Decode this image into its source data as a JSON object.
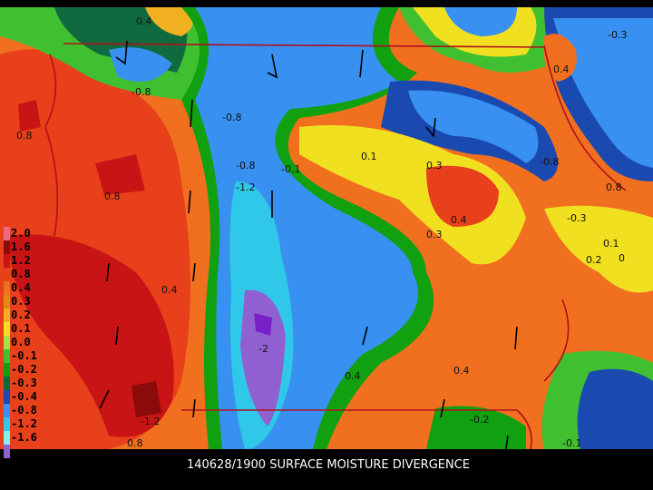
{
  "caption": "140628/1900 SURFACE MOISTURE DIVERGENCE",
  "legend": [
    {
      "label": "2.0",
      "color": "#e86a8a"
    },
    {
      "label": "1.6",
      "color": "#8b0a0a"
    },
    {
      "label": "1.2",
      "color": "#c81414"
    },
    {
      "label": "0.8",
      "color": "#e8401a"
    },
    {
      "label": "0.4",
      "color": "#f07020"
    },
    {
      "label": "0.3",
      "color": "#e08a10"
    },
    {
      "label": "0.2",
      "color": "#f0b020"
    },
    {
      "label": "0.1",
      "color": "#f0e020"
    },
    {
      "label": "0.0",
      "color": "#a8e040"
    },
    {
      "label": "-0.1",
      "color": "#40c030"
    },
    {
      "label": "-0.2",
      "color": "#10a010"
    },
    {
      "label": "-0.3",
      "color": "#106a40"
    },
    {
      "label": "-0.4",
      "color": "#1a4ab0"
    },
    {
      "label": "-0.8",
      "color": "#3890f0"
    },
    {
      "label": "-1.2",
      "color": "#30c8e8"
    },
    {
      "label": "-1.6",
      "color": "#80f0f0"
    },
    {
      "label": "",
      "color": "#9060d0"
    }
  ],
  "contour_labels": [
    "0.4",
    "-0.8",
    "-0.8",
    "-0.8",
    "-1.2",
    "-2",
    "0.8",
    "0.8",
    "0.4",
    "0.4",
    "-0.1",
    "0.1",
    "-0.8",
    "0.8",
    "-0.3",
    "0.3",
    "0.4",
    "-1.2",
    "0.8",
    "0.1",
    "-0.1",
    "0.3",
    "0.4",
    "-0.2",
    "0.4",
    "-0.3",
    "0.2",
    "0"
  ]
}
